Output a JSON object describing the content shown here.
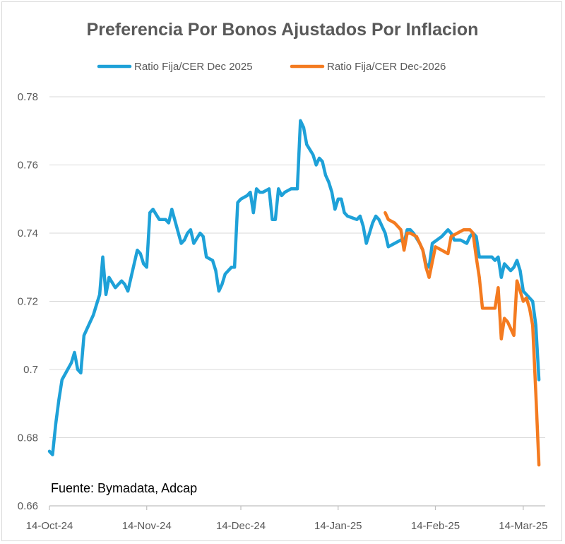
{
  "chart_data": {
    "type": "line",
    "title": "Preferencia Por Bonos Ajustados Por Inflacion",
    "source_note": "Fuente: Bymadata, Adcap",
    "x_tick_labels": [
      "14-Oct-24",
      "14-Nov-24",
      "14-Dec-24",
      "14-Jan-25",
      "14-Feb-25",
      "14-Mar-25"
    ],
    "x_tick_dates": [
      "2024-10-14",
      "2024-11-14",
      "2024-12-14",
      "2025-01-14",
      "2025-02-14",
      "2025-03-14"
    ],
    "xlim": [
      "2024-10-14",
      "2025-03-21"
    ],
    "y_tick_labels": [
      "0.66",
      "0.68",
      "0.7",
      "0.72",
      "0.74",
      "0.76",
      "0.78"
    ],
    "ylim": [
      0.66,
      0.78
    ],
    "grid": "horizontal",
    "legend_position": "top",
    "series": [
      {
        "name": "Ratio Fija/CER Dec 2025",
        "color": "#1ea1d8",
        "points": [
          [
            "2024-10-14",
            0.676
          ],
          [
            "2024-10-15",
            0.675
          ],
          [
            "2024-10-16",
            0.684
          ],
          [
            "2024-10-17",
            0.691
          ],
          [
            "2024-10-18",
            0.697
          ],
          [
            "2024-10-21",
            0.702
          ],
          [
            "2024-10-22",
            0.705
          ],
          [
            "2024-10-23",
            0.7
          ],
          [
            "2024-10-24",
            0.699
          ],
          [
            "2024-10-25",
            0.71
          ],
          [
            "2024-10-28",
            0.716
          ],
          [
            "2024-10-29",
            0.719
          ],
          [
            "2024-10-30",
            0.722
          ],
          [
            "2024-10-31",
            0.733
          ],
          [
            "2024-11-01",
            0.722
          ],
          [
            "2024-11-02",
            0.727
          ],
          [
            "2024-11-04",
            0.724
          ],
          [
            "2024-11-05",
            0.725
          ],
          [
            "2024-11-06",
            0.726
          ],
          [
            "2024-11-07",
            0.725
          ],
          [
            "2024-11-08",
            0.723
          ],
          [
            "2024-11-11",
            0.735
          ],
          [
            "2024-11-12",
            0.734
          ],
          [
            "2024-11-13",
            0.731
          ],
          [
            "2024-11-14",
            0.73
          ],
          [
            "2024-11-15",
            0.746
          ],
          [
            "2024-11-16",
            0.747
          ],
          [
            "2024-11-18",
            0.744
          ],
          [
            "2024-11-19",
            0.744
          ],
          [
            "2024-11-20",
            0.744
          ],
          [
            "2024-11-21",
            0.743
          ],
          [
            "2024-11-22",
            0.747
          ],
          [
            "2024-11-25",
            0.737
          ],
          [
            "2024-11-26",
            0.738
          ],
          [
            "2024-11-27",
            0.74
          ],
          [
            "2024-11-28",
            0.741
          ],
          [
            "2024-11-29",
            0.737
          ],
          [
            "2024-12-01",
            0.74
          ],
          [
            "2024-12-02",
            0.739
          ],
          [
            "2024-12-03",
            0.733
          ],
          [
            "2024-12-05",
            0.732
          ],
          [
            "2024-12-06",
            0.729
          ],
          [
            "2024-12-07",
            0.723
          ],
          [
            "2024-12-08",
            0.725
          ],
          [
            "2024-12-09",
            0.728
          ],
          [
            "2024-12-11",
            0.73
          ],
          [
            "2024-12-12",
            0.73
          ],
          [
            "2024-12-13",
            0.749
          ],
          [
            "2024-12-14",
            0.75
          ],
          [
            "2024-12-16",
            0.751
          ],
          [
            "2024-12-17",
            0.752
          ],
          [
            "2024-12-18",
            0.746
          ],
          [
            "2024-12-19",
            0.753
          ],
          [
            "2024-12-20",
            0.752
          ],
          [
            "2024-12-21",
            0.752
          ],
          [
            "2024-12-23",
            0.753
          ],
          [
            "2024-12-24",
            0.744
          ],
          [
            "2024-12-25",
            0.744
          ],
          [
            "2024-12-26",
            0.753
          ],
          [
            "2024-12-27",
            0.751
          ],
          [
            "2024-12-28",
            0.752
          ],
          [
            "2024-12-30",
            0.753
          ],
          [
            "2024-12-31",
            0.753
          ],
          [
            "2025-01-01",
            0.753
          ],
          [
            "2025-01-02",
            0.773
          ],
          [
            "2025-01-03",
            0.771
          ],
          [
            "2025-01-04",
            0.766
          ],
          [
            "2025-01-06",
            0.763
          ],
          [
            "2025-01-07",
            0.76
          ],
          [
            "2025-01-08",
            0.762
          ],
          [
            "2025-01-09",
            0.761
          ],
          [
            "2025-01-10",
            0.757
          ],
          [
            "2025-01-11",
            0.755
          ],
          [
            "2025-01-12",
            0.752
          ],
          [
            "2025-01-13",
            0.747
          ],
          [
            "2025-01-14",
            0.75
          ],
          [
            "2025-01-15",
            0.75
          ],
          [
            "2025-01-16",
            0.746
          ],
          [
            "2025-01-17",
            0.745
          ],
          [
            "2025-01-20",
            0.744
          ],
          [
            "2025-01-21",
            0.745
          ],
          [
            "2025-01-22",
            0.742
          ],
          [
            "2025-01-23",
            0.737
          ],
          [
            "2025-01-24",
            0.74
          ],
          [
            "2025-01-25",
            0.743
          ],
          [
            "2025-01-26",
            0.745
          ],
          [
            "2025-01-27",
            0.744
          ],
          [
            "2025-01-29",
            0.74
          ],
          [
            "2025-01-30",
            0.736
          ],
          [
            "2025-02-01",
            0.737
          ],
          [
            "2025-02-03",
            0.738
          ],
          [
            "2025-02-04",
            0.737
          ],
          [
            "2025-02-05",
            0.741
          ],
          [
            "2025-02-06",
            0.741
          ],
          [
            "2025-02-07",
            0.74
          ],
          [
            "2025-02-09",
            0.737
          ],
          [
            "2025-02-10",
            0.735
          ],
          [
            "2025-02-11",
            0.731
          ],
          [
            "2025-02-12",
            0.73
          ],
          [
            "2025-02-13",
            0.737
          ],
          [
            "2025-02-16",
            0.739
          ],
          [
            "2025-02-18",
            0.741
          ],
          [
            "2025-02-19",
            0.74
          ],
          [
            "2025-02-20",
            0.738
          ],
          [
            "2025-02-22",
            0.738
          ],
          [
            "2025-02-24",
            0.737
          ],
          [
            "2025-02-25",
            0.739
          ],
          [
            "2025-02-26",
            0.74
          ],
          [
            "2025-02-27",
            0.739
          ],
          [
            "2025-02-28",
            0.733
          ],
          [
            "2025-03-01",
            0.733
          ],
          [
            "2025-03-04",
            0.733
          ],
          [
            "2025-03-05",
            0.732
          ],
          [
            "2025-03-06",
            0.733
          ],
          [
            "2025-03-07",
            0.727
          ],
          [
            "2025-03-08",
            0.731
          ],
          [
            "2025-03-09",
            0.73
          ],
          [
            "2025-03-10",
            0.729
          ],
          [
            "2025-03-11",
            0.73
          ],
          [
            "2025-03-12",
            0.732
          ],
          [
            "2025-03-13",
            0.729
          ],
          [
            "2025-03-14",
            0.723
          ],
          [
            "2025-03-15",
            0.722
          ],
          [
            "2025-03-17",
            0.72
          ],
          [
            "2025-03-18",
            0.713
          ],
          [
            "2025-03-19",
            0.697
          ]
        ]
      },
      {
        "name": "Ratio Fija/CER Dec-2026",
        "color": "#f47b20",
        "points": [
          [
            "2025-01-29",
            0.746
          ],
          [
            "2025-01-30",
            0.744
          ],
          [
            "2025-02-01",
            0.743
          ],
          [
            "2025-02-03",
            0.741
          ],
          [
            "2025-02-04",
            0.735
          ],
          [
            "2025-02-05",
            0.74
          ],
          [
            "2025-02-06",
            0.74
          ],
          [
            "2025-02-08",
            0.739
          ],
          [
            "2025-02-09",
            0.737
          ],
          [
            "2025-02-10",
            0.735
          ],
          [
            "2025-02-11",
            0.73
          ],
          [
            "2025-02-12",
            0.727
          ],
          [
            "2025-02-14",
            0.736
          ],
          [
            "2025-02-16",
            0.735
          ],
          [
            "2025-02-18",
            0.734
          ],
          [
            "2025-02-19",
            0.739
          ],
          [
            "2025-02-21",
            0.74
          ],
          [
            "2025-02-23",
            0.741
          ],
          [
            "2025-02-25",
            0.741
          ],
          [
            "2025-02-26",
            0.74
          ],
          [
            "2025-02-27",
            0.733
          ],
          [
            "2025-02-28",
            0.727
          ],
          [
            "2025-03-01",
            0.718
          ],
          [
            "2025-03-03",
            0.718
          ],
          [
            "2025-03-04",
            0.718
          ],
          [
            "2025-03-05",
            0.718
          ],
          [
            "2025-03-06",
            0.724
          ],
          [
            "2025-03-07",
            0.709
          ],
          [
            "2025-03-08",
            0.715
          ],
          [
            "2025-03-09",
            0.714
          ],
          [
            "2025-03-10",
            0.712
          ],
          [
            "2025-03-11",
            0.71
          ],
          [
            "2025-03-12",
            0.726
          ],
          [
            "2025-03-13",
            0.723
          ],
          [
            "2025-03-14",
            0.72
          ],
          [
            "2025-03-15",
            0.721
          ],
          [
            "2025-03-16",
            0.718
          ],
          [
            "2025-03-17",
            0.713
          ],
          [
            "2025-03-18",
            0.693
          ],
          [
            "2025-03-19",
            0.672
          ]
        ]
      }
    ]
  }
}
